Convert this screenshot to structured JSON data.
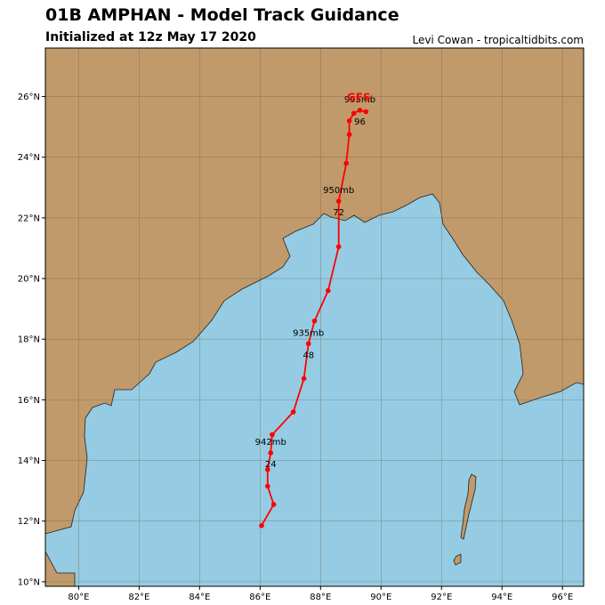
{
  "header": {
    "title": "01B AMPHAN - Model Track Guidance",
    "subtitle": "Initialized at 12z May 17 2020",
    "credit": "Levi Cowan - tropicaltidbits.com"
  },
  "colors": {
    "land": "#c09a6b",
    "water": "#96cce3",
    "track": "#ff0000",
    "grid": "#7a6a55"
  },
  "map": {
    "lon_ticks": [
      {
        "v": 80,
        "label": "80°E"
      },
      {
        "v": 82,
        "label": "82°E"
      },
      {
        "v": 84,
        "label": "84°E"
      },
      {
        "v": 86,
        "label": "86°E"
      },
      {
        "v": 88,
        "label": "88°E"
      },
      {
        "v": 90,
        "label": "90°E"
      },
      {
        "v": 92,
        "label": "92°E"
      },
      {
        "v": 94,
        "label": "94°E"
      },
      {
        "v": 96,
        "label": "96°E"
      }
    ],
    "lat_ticks": [
      {
        "v": 10,
        "label": "10°N"
      },
      {
        "v": 12,
        "label": "12°N"
      },
      {
        "v": 14,
        "label": "14°N"
      },
      {
        "v": 16,
        "label": "16°N"
      },
      {
        "v": 18,
        "label": "18°N"
      },
      {
        "v": 20,
        "label": "20°N"
      },
      {
        "v": 22,
        "label": "22°N"
      },
      {
        "v": 24,
        "label": "24°N"
      },
      {
        "v": 26,
        "label": "26°N"
      }
    ],
    "lon_range": [
      78.9,
      96.7
    ],
    "lat_range": [
      9.85,
      27.6
    ]
  },
  "track": {
    "model": "GFS",
    "points": [
      {
        "lon": 86.05,
        "lat": 11.85
      },
      {
        "lon": 86.45,
        "lat": 12.55
      },
      {
        "lon": 86.25,
        "lat": 13.15
      },
      {
        "lon": 86.25,
        "lat": 13.7
      },
      {
        "lon": 86.35,
        "lat": 14.25
      },
      {
        "lon": 86.4,
        "lat": 14.85
      },
      {
        "lon": 87.1,
        "lat": 15.6
      },
      {
        "lon": 87.45,
        "lat": 16.7
      },
      {
        "lon": 87.6,
        "lat": 17.85
      },
      {
        "lon": 87.8,
        "lat": 18.6
      },
      {
        "lon": 88.25,
        "lat": 19.6
      },
      {
        "lon": 88.6,
        "lat": 21.05
      },
      {
        "lon": 88.6,
        "lat": 22.55
      },
      {
        "lon": 88.85,
        "lat": 23.8
      },
      {
        "lon": 88.95,
        "lat": 24.75
      },
      {
        "lon": 88.95,
        "lat": 25.2
      },
      {
        "lon": 89.1,
        "lat": 25.45
      },
      {
        "lon": 89.3,
        "lat": 25.55
      },
      {
        "lon": 89.5,
        "lat": 25.5
      }
    ],
    "labels": [
      {
        "id": "p942",
        "mb": "942mb",
        "hr": "24",
        "lon": 86.35,
        "lat": 14.25
      },
      {
        "id": "p935",
        "mb": "935mb",
        "hr": "48",
        "lon": 87.6,
        "lat": 17.85
      },
      {
        "id": "p950",
        "mb": "950mb",
        "hr": "72",
        "lon": 88.6,
        "lat": 22.55
      },
      {
        "id": "p995",
        "mb": "995mb",
        "hr": "96",
        "lon": 89.3,
        "lat": 25.55
      }
    ]
  }
}
